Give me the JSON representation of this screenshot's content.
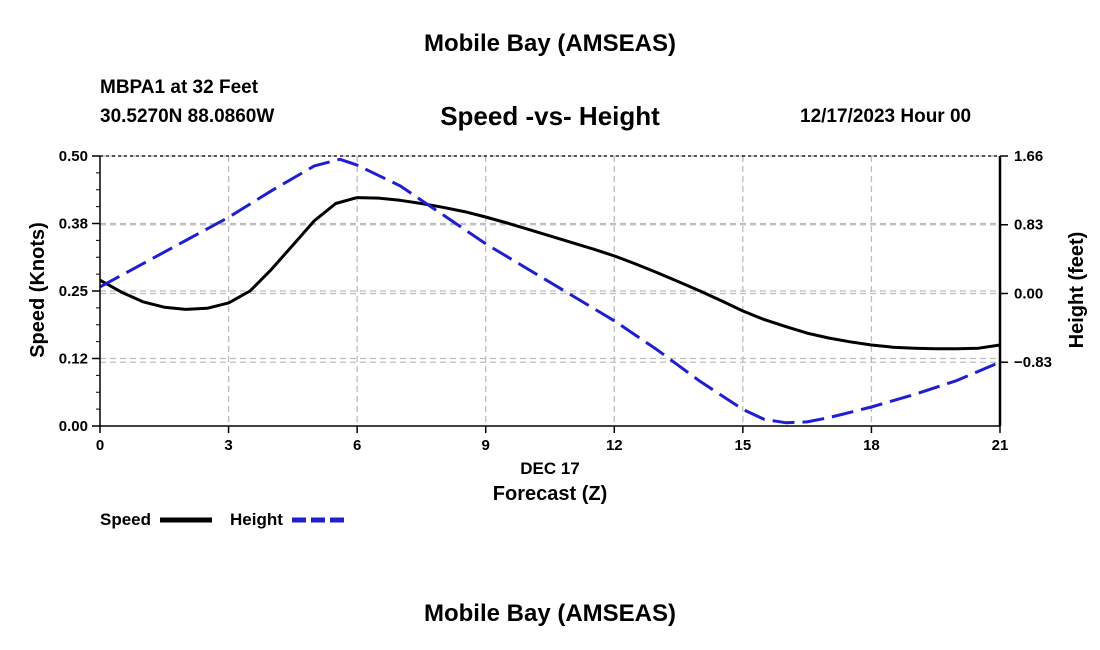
{
  "chart_data": {
    "type": "line",
    "title": "Mobile Bay (AMSEAS)",
    "subtitle": "Speed -vs- Height",
    "station": "MBPA1 at 32 Feet",
    "coords": "30.5270N  88.0860W",
    "datetime": "12/17/2023 Hour 00",
    "xlabel_date": "DEC 17",
    "xlabel": "Forecast (Z)",
    "ylabel": "Speed (Knots)",
    "ylabel_right": "Height (feet)",
    "xlim": [
      0,
      21
    ],
    "ylim": [
      0,
      0.5
    ],
    "ylim_right": [
      -1.6,
      1.66
    ],
    "x_ticks": [
      0,
      3,
      6,
      9,
      12,
      15,
      18,
      21
    ],
    "x_tick_labels": [
      "0",
      "3",
      "6",
      "9",
      "12",
      "15",
      "18",
      "21"
    ],
    "y_ticks": [
      0,
      0.125,
      0.25,
      0.375,
      0.5
    ],
    "y_tick_labels": [
      "0.00",
      "0.12",
      "0.25",
      "0.38",
      "0.50"
    ],
    "y_ticks_right": [
      -0.83,
      0,
      0.83,
      1.66
    ],
    "y_tick_labels_right": [
      "−0.83",
      "0.00",
      "0.83",
      "1.66"
    ],
    "grid": true,
    "legend_position": "bottom-left",
    "series": [
      {
        "name": "Speed",
        "axis": "left",
        "color": "#000000",
        "style": "solid",
        "x": [
          0,
          0.5,
          1,
          1.5,
          2,
          2.5,
          3,
          3.5,
          4,
          4.5,
          5,
          5.5,
          6,
          6.5,
          7,
          7.5,
          8,
          8.5,
          9,
          9.5,
          10,
          10.5,
          11,
          11.5,
          12,
          12.5,
          13,
          13.5,
          14,
          14.5,
          15,
          15.5,
          16,
          16.5,
          17,
          17.5,
          18,
          18.5,
          19,
          19.5,
          20,
          20.5,
          21
        ],
        "values": [
          0.27,
          0.248,
          0.23,
          0.22,
          0.216,
          0.218,
          0.228,
          0.25,
          0.29,
          0.335,
          0.38,
          0.412,
          0.423,
          0.422,
          0.418,
          0.412,
          0.405,
          0.397,
          0.387,
          0.376,
          0.364,
          0.352,
          0.34,
          0.328,
          0.315,
          0.3,
          0.284,
          0.267,
          0.25,
          0.232,
          0.213,
          0.197,
          0.184,
          0.172,
          0.163,
          0.156,
          0.15,
          0.146,
          0.144,
          0.143,
          0.143,
          0.144,
          0.15
        ]
      },
      {
        "name": "Height",
        "axis": "right",
        "color": "#1f1fd0",
        "style": "dashed",
        "x": [
          0,
          1,
          2,
          3,
          4,
          5,
          5.6,
          6,
          7,
          8,
          9,
          10,
          11,
          12,
          13,
          14,
          15,
          15.5,
          16,
          16.5,
          17,
          18,
          19,
          20,
          21
        ],
        "values": [
          0.08,
          0.36,
          0.64,
          0.92,
          1.24,
          1.54,
          1.62,
          1.55,
          1.3,
          0.95,
          0.6,
          0.29,
          -0.02,
          -0.33,
          -0.68,
          -1.06,
          -1.4,
          -1.52,
          -1.56,
          -1.55,
          -1.5,
          -1.37,
          -1.22,
          -1.05,
          -0.83
        ]
      }
    ]
  },
  "legend": {
    "items": [
      {
        "label": "Speed",
        "color": "#000000"
      },
      {
        "label": "Height",
        "color": "#1f1fd0"
      }
    ]
  }
}
